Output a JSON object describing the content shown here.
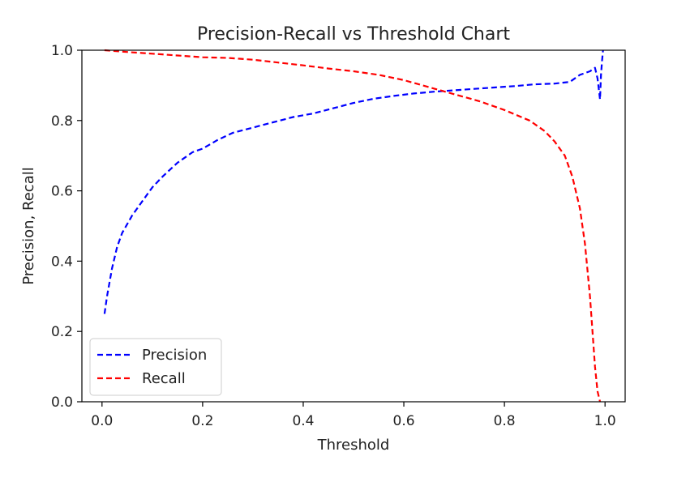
{
  "chart_data": {
    "type": "line",
    "title": "Precision-Recall vs Threshold Chart",
    "xlabel": "Threshold",
    "ylabel": "Precision, Recall",
    "xlim": [
      -0.04,
      1.04
    ],
    "ylim": [
      0.0,
      1.0
    ],
    "xticks": [
      0.0,
      0.2,
      0.4,
      0.6,
      0.8,
      1.0
    ],
    "xtick_labels": [
      "0.0",
      "0.2",
      "0.4",
      "0.6",
      "0.8",
      "1.0"
    ],
    "yticks": [
      0.0,
      0.2,
      0.4,
      0.6,
      0.8,
      1.0
    ],
    "ytick_labels": [
      "0.0",
      "0.2",
      "0.4",
      "0.6",
      "0.8",
      "1.0"
    ],
    "grid": false,
    "legend_position": "lower-left",
    "series": [
      {
        "name": "Precision",
        "color": "#0000ff",
        "linestyle": "dashed",
        "x": [
          0.005,
          0.01,
          0.02,
          0.03,
          0.04,
          0.06,
          0.08,
          0.1,
          0.12,
          0.15,
          0.18,
          0.2,
          0.23,
          0.26,
          0.3,
          0.34,
          0.38,
          0.42,
          0.46,
          0.5,
          0.54,
          0.58,
          0.62,
          0.66,
          0.7,
          0.74,
          0.78,
          0.82,
          0.86,
          0.9,
          0.93,
          0.95,
          0.96,
          0.97,
          0.98,
          0.985,
          0.99,
          0.992,
          0.994,
          0.996
        ],
        "y": [
          0.25,
          0.3,
          0.38,
          0.44,
          0.48,
          0.53,
          0.57,
          0.61,
          0.64,
          0.68,
          0.71,
          0.72,
          0.745,
          0.765,
          0.78,
          0.795,
          0.81,
          0.82,
          0.835,
          0.85,
          0.862,
          0.87,
          0.877,
          0.882,
          0.886,
          0.89,
          0.894,
          0.898,
          0.903,
          0.905,
          0.91,
          0.93,
          0.935,
          0.94,
          0.95,
          0.92,
          0.86,
          0.93,
          0.97,
          1.0
        ]
      },
      {
        "name": "Recall",
        "color": "#ff0000",
        "linestyle": "dashed",
        "x": [
          0.005,
          0.05,
          0.1,
          0.15,
          0.2,
          0.25,
          0.3,
          0.35,
          0.4,
          0.45,
          0.5,
          0.55,
          0.6,
          0.65,
          0.7,
          0.75,
          0.8,
          0.85,
          0.88,
          0.9,
          0.92,
          0.935,
          0.95,
          0.96,
          0.97,
          0.98,
          0.985,
          0.99
        ],
        "y": [
          1.0,
          0.995,
          0.99,
          0.985,
          0.98,
          0.978,
          0.973,
          0.965,
          0.957,
          0.948,
          0.94,
          0.93,
          0.915,
          0.895,
          0.875,
          0.855,
          0.83,
          0.8,
          0.77,
          0.74,
          0.7,
          0.64,
          0.55,
          0.45,
          0.3,
          0.1,
          0.03,
          0.0
        ]
      }
    ]
  }
}
